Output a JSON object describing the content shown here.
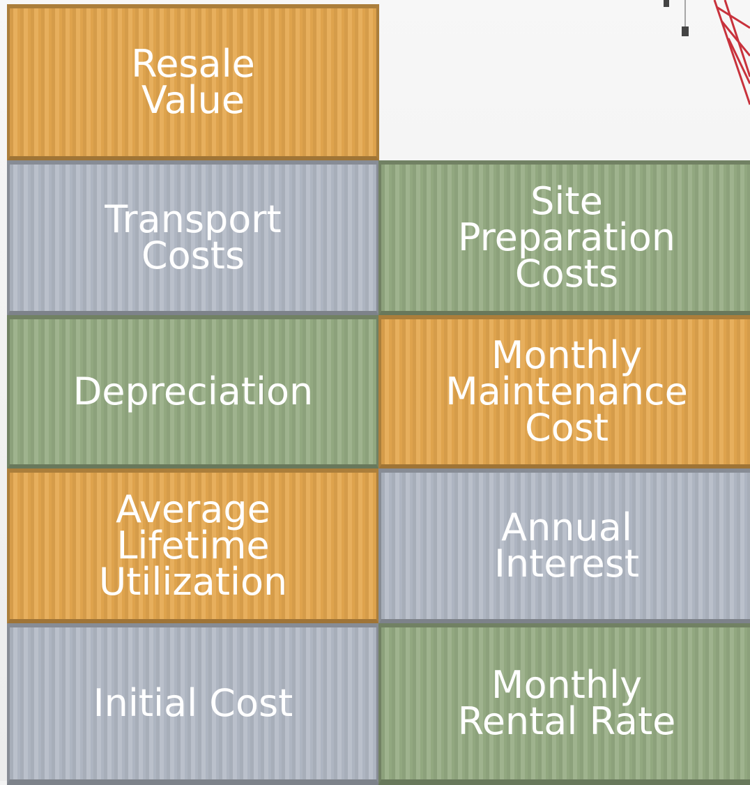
{
  "containers": [
    {
      "lines": [
        "Resale",
        "Value"
      ]
    },
    {
      "lines": [
        "Transport",
        "Costs"
      ]
    },
    {
      "lines": [
        "Site",
        "Preparation",
        "Costs"
      ]
    },
    {
      "lines": [
        "Depreciation"
      ]
    },
    {
      "lines": [
        "Monthly",
        "Maintenance",
        "Cost"
      ]
    },
    {
      "lines": [
        "Average",
        "Lifetime",
        "Utilization"
      ]
    },
    {
      "lines": [
        "Annual",
        "Interest"
      ]
    },
    {
      "lines": [
        "Initial Cost"
      ]
    },
    {
      "lines": [
        "Monthly",
        "Rental Rate"
      ]
    }
  ]
}
